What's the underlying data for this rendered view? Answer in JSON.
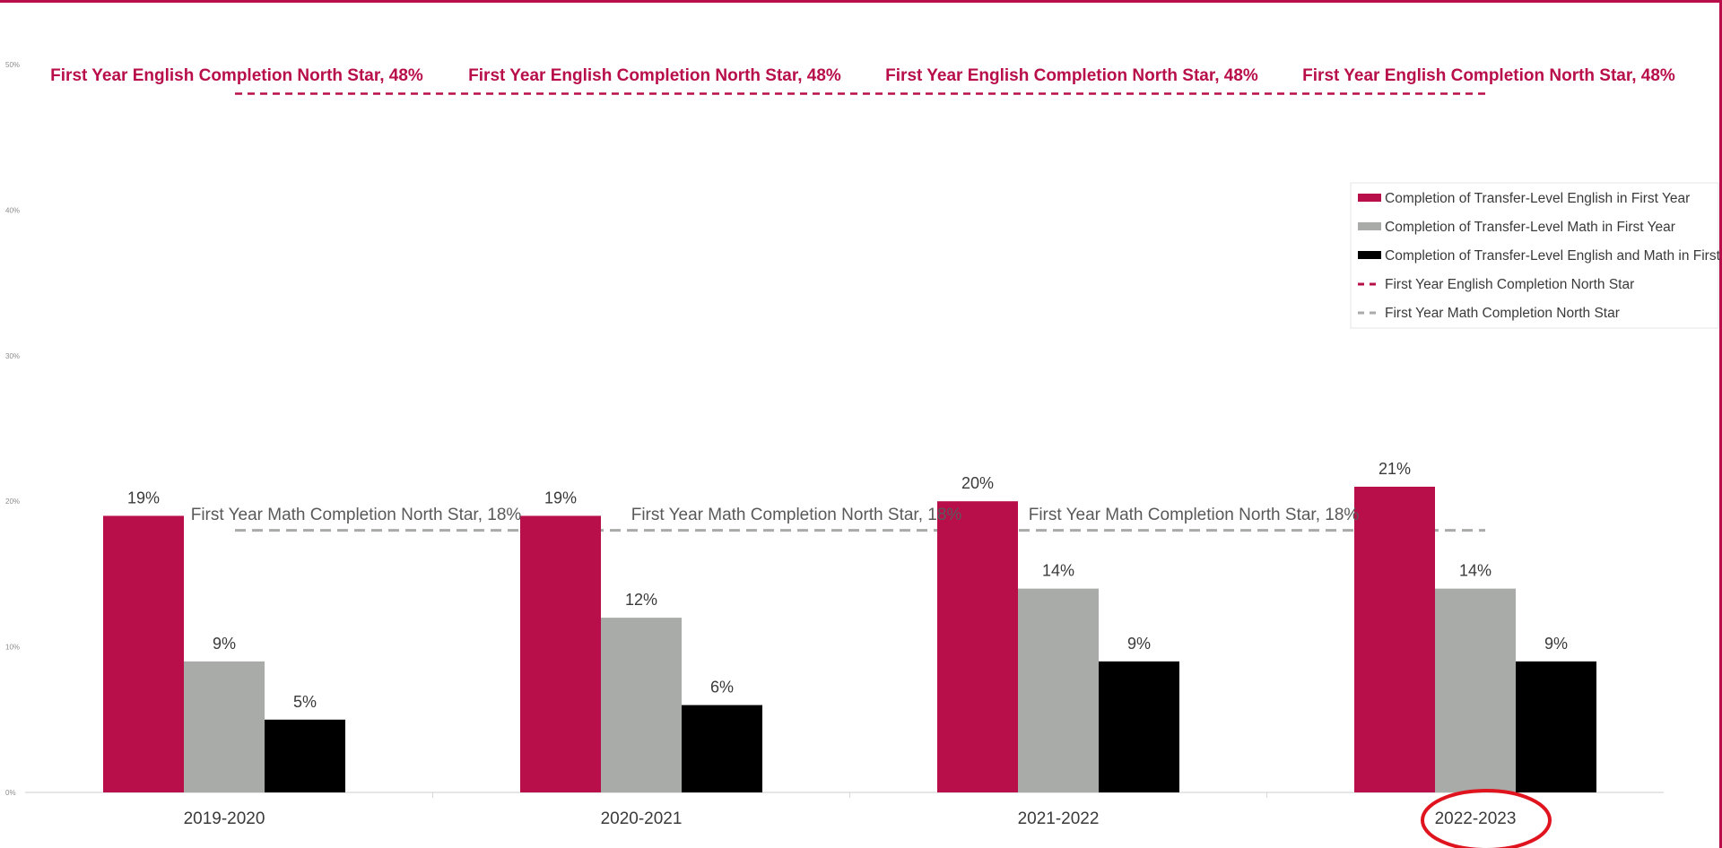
{
  "chart_data": {
    "type": "bar",
    "categories": [
      "2019-2020",
      "2020-2021",
      "2021-2022",
      "2022-2023"
    ],
    "series": [
      {
        "name": "Completion of Transfer-Level English in First Year",
        "values": [
          19,
          19,
          20,
          21
        ],
        "color": "#b80f4a",
        "labels": [
          "19%",
          "19%",
          "20%",
          "21%"
        ]
      },
      {
        "name": "Completion of Transfer-Level Math in First Year",
        "values": [
          9,
          12,
          14,
          14
        ],
        "color": "#a8aba8",
        "labels": [
          "9%",
          "12%",
          "14%",
          "14%"
        ]
      },
      {
        "name": "Completion of Transfer-Level English and Math in First Year",
        "values": [
          5,
          6,
          9,
          9
        ],
        "color": "#000000",
        "labels": [
          "5%",
          "6%",
          "9%",
          "9%"
        ]
      }
    ],
    "reference_lines": [
      {
        "name": "First Year English Completion North Star",
        "value": 48,
        "color": "#b80f4a",
        "style": "dashed",
        "label": "First Year English Completion North Star, 48%",
        "labels_shown": 4
      },
      {
        "name": "First Year Math Completion North Star",
        "value": 18,
        "color": "#a8aba8",
        "style": "dashed",
        "label": "First Year Math Completion North Star, 18%",
        "labels_shown": 3
      }
    ],
    "yticks": [
      "0%",
      "10%",
      "20%",
      "30%",
      "40%",
      "50%"
    ],
    "ylim": [
      0,
      50
    ],
    "grid": false,
    "legend": {
      "placement": "top-right",
      "entries": [
        {
          "label": "Completion of Transfer-Level English in First Year",
          "kind": "bar",
          "color": "#b80f4a"
        },
        {
          "label": "Completion of Transfer-Level Math in First Year",
          "kind": "bar",
          "color": "#a8aba8"
        },
        {
          "label": "Completion of Transfer-Level English and Math in First Year",
          "kind": "bar",
          "color": "#000000"
        },
        {
          "label": "First Year English Completion North Star",
          "kind": "dash",
          "color": "#b80f4a"
        },
        {
          "label": "First Year Math Completion North Star",
          "kind": "dash",
          "color": "#a8aba8"
        }
      ]
    },
    "highlight": {
      "category": "2022-2023",
      "color": "#e0141e",
      "shape": "ellipse"
    }
  }
}
